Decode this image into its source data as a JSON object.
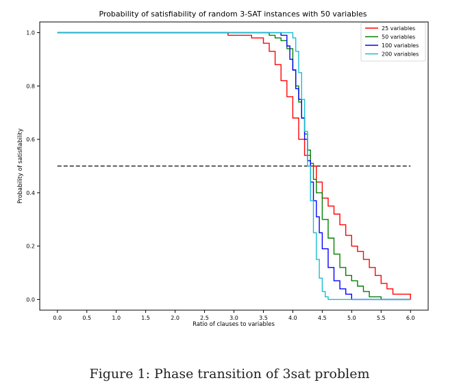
{
  "figure_caption": "Figure 1: Phase transition of 3sat problem",
  "chart_data": {
    "type": "line",
    "title": "Probability of satisfiability of random 3-SAT instances with 50 variables",
    "xlabel": "Ratio of clauses to variables",
    "ylabel": "Probability of satisfiability",
    "xlim": [
      -0.3,
      6.3
    ],
    "ylim": [
      -0.04,
      1.04
    ],
    "x_ticks": [
      0.0,
      0.5,
      1.0,
      1.5,
      2.0,
      2.5,
      3.0,
      3.5,
      4.0,
      4.5,
      5.0,
      5.5,
      6.0
    ],
    "x_tick_labels": [
      "0.0",
      "0.5",
      "1.0",
      "1.5",
      "2.0",
      "2.5",
      "3.0",
      "3.5",
      "4.0",
      "4.5",
      "5.0",
      "5.5",
      "6.0"
    ],
    "y_ticks": [
      0.0,
      0.2,
      0.4,
      0.6,
      0.8,
      1.0
    ],
    "y_tick_labels": [
      "0.0",
      "0.2",
      "0.4",
      "0.6",
      "0.8",
      "1.0"
    ],
    "grid": false,
    "legend_position": "top-right",
    "reference_line": {
      "y": 0.5,
      "x_range": [
        0.0,
        6.0
      ],
      "style": "dashed",
      "color": "#000000"
    },
    "series": [
      {
        "name": "25 variables",
        "color": "#ff0000",
        "x": [
          0.0,
          2.8,
          2.9,
          3.0,
          3.1,
          3.2,
          3.3,
          3.4,
          3.5,
          3.6,
          3.7,
          3.8,
          3.9,
          4.0,
          4.1,
          4.2,
          4.3,
          4.4,
          4.5,
          4.6,
          4.7,
          4.8,
          4.9,
          5.0,
          5.1,
          5.2,
          5.3,
          5.4,
          5.5,
          5.6,
          5.7,
          5.8,
          5.9,
          6.0
        ],
        "y": [
          1.0,
          1.0,
          0.99,
          0.99,
          0.99,
          0.99,
          0.98,
          0.98,
          0.96,
          0.93,
          0.88,
          0.82,
          0.76,
          0.68,
          0.6,
          0.54,
          0.5,
          0.44,
          0.38,
          0.35,
          0.32,
          0.28,
          0.24,
          0.2,
          0.18,
          0.15,
          0.12,
          0.09,
          0.06,
          0.04,
          0.02,
          0.02,
          0.02,
          0.0
        ]
      },
      {
        "name": "50 variables",
        "color": "#008000",
        "x": [
          0.0,
          3.5,
          3.6,
          3.7,
          3.8,
          3.9,
          4.0,
          4.05,
          4.1,
          4.15,
          4.2,
          4.25,
          4.3,
          4.35,
          4.4,
          4.5,
          4.6,
          4.7,
          4.8,
          4.9,
          5.0,
          5.1,
          5.2,
          5.3,
          5.4,
          5.5,
          6.0
        ],
        "y": [
          1.0,
          1.0,
          0.99,
          0.98,
          0.97,
          0.94,
          0.86,
          0.8,
          0.74,
          0.68,
          0.62,
          0.56,
          0.51,
          0.45,
          0.4,
          0.3,
          0.23,
          0.17,
          0.12,
          0.09,
          0.07,
          0.05,
          0.03,
          0.01,
          0.01,
          0.0,
          0.0
        ]
      },
      {
        "name": "100 variables",
        "color": "#0000ff",
        "x": [
          0.0,
          3.7,
          3.8,
          3.9,
          3.95,
          4.0,
          4.05,
          4.1,
          4.15,
          4.2,
          4.25,
          4.3,
          4.35,
          4.4,
          4.45,
          4.5,
          4.6,
          4.7,
          4.8,
          4.9,
          5.0,
          5.1,
          6.0
        ],
        "y": [
          1.0,
          1.0,
          0.99,
          0.95,
          0.9,
          0.86,
          0.79,
          0.75,
          0.68,
          0.6,
          0.52,
          0.44,
          0.37,
          0.31,
          0.25,
          0.19,
          0.12,
          0.07,
          0.04,
          0.02,
          0.0,
          0.0,
          0.0
        ]
      },
      {
        "name": "200 variables",
        "color": "#17becf",
        "x": [
          0.0,
          3.9,
          4.0,
          4.05,
          4.1,
          4.15,
          4.2,
          4.25,
          4.3,
          4.35,
          4.4,
          4.45,
          4.5,
          4.55,
          4.6,
          6.0
        ],
        "y": [
          1.0,
          1.0,
          0.98,
          0.93,
          0.85,
          0.75,
          0.63,
          0.5,
          0.37,
          0.25,
          0.15,
          0.08,
          0.03,
          0.01,
          0.0,
          0.0
        ]
      }
    ]
  }
}
